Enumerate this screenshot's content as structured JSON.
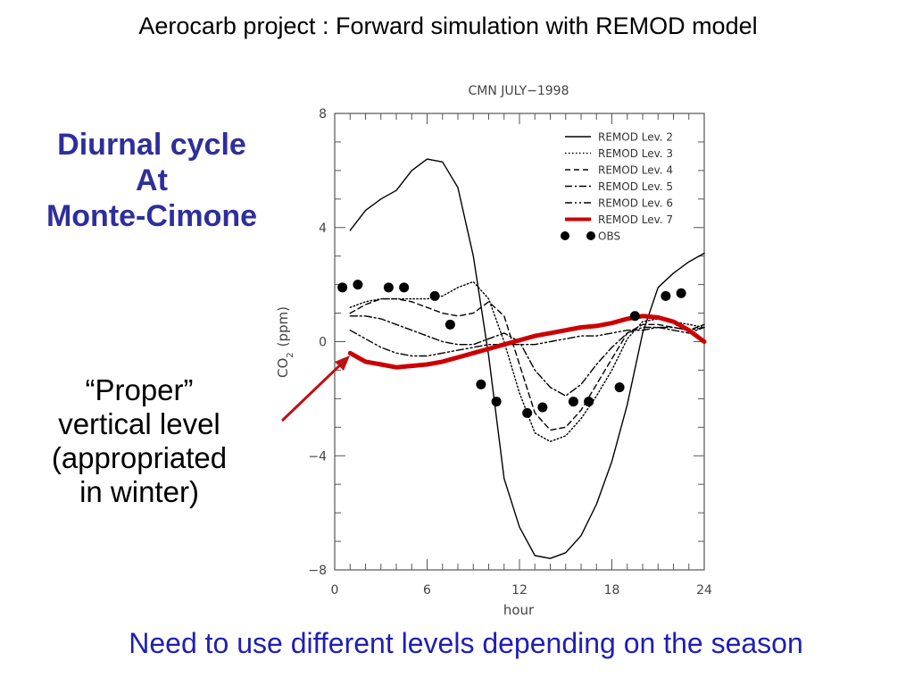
{
  "slide": {
    "title": "Aerocarb project : Forward simulation with REMOD model",
    "heading_lines": [
      "Diurnal cycle",
      "At",
      "Monte-Cimone"
    ],
    "callout_lines": [
      "“Proper”",
      "vertical level",
      "(appropriated",
      "in winter)"
    ],
    "footer": "Need to use different levels depending on the season",
    "heading_color": "#2e2e9c",
    "footer_color": "#1f1fb5",
    "arrow_color": "#c01010"
  },
  "chart_data": {
    "type": "line",
    "title": "CMN JULY−1998",
    "xlabel": "hour",
    "ylabel_main": "CO",
    "ylabel_sub": "2",
    "ylabel_unit": "(ppm)",
    "xlim": [
      0,
      24
    ],
    "ylim": [
      -8,
      8
    ],
    "x_ticks": [
      "0",
      "6",
      "12",
      "18",
      "24"
    ],
    "y_ticks": [
      "−8",
      "−4",
      "0",
      "4",
      "8"
    ],
    "legend_position": "top-right",
    "grid": false,
    "series": [
      {
        "name": "REMOD Lev. 2",
        "style": "solid",
        "color": "#000000",
        "x": [
          1,
          2,
          3,
          4,
          5,
          6,
          7,
          8,
          9,
          10,
          11,
          12,
          13,
          14,
          15,
          16,
          17,
          18,
          19,
          20,
          21,
          22,
          23,
          24
        ],
        "y": [
          3.9,
          4.6,
          5.0,
          5.3,
          6.0,
          6.4,
          6.3,
          5.4,
          3.0,
          -0.5,
          -4.8,
          -6.5,
          -7.5,
          -7.6,
          -7.4,
          -6.8,
          -5.7,
          -4.2,
          -2.2,
          0.3,
          1.9,
          2.4,
          2.8,
          3.1
        ]
      },
      {
        "name": "REMOD Lev. 3",
        "style": "dotted",
        "color": "#000000",
        "x": [
          1,
          2,
          3,
          4,
          5,
          6,
          7,
          8,
          9,
          10,
          11,
          12,
          13,
          14,
          15,
          16,
          17,
          18,
          19,
          20,
          21,
          22,
          23,
          24
        ],
        "y": [
          1.2,
          1.4,
          1.5,
          1.5,
          1.5,
          1.5,
          1.6,
          1.9,
          2.1,
          1.5,
          0.0,
          -1.8,
          -3.2,
          -3.5,
          -3.3,
          -2.7,
          -1.9,
          -1.0,
          0.1,
          0.7,
          0.8,
          0.7,
          0.6,
          0.5
        ]
      },
      {
        "name": "REMOD Lev. 4",
        "style": "dashed",
        "color": "#000000",
        "x": [
          1,
          2,
          3,
          4,
          5,
          6,
          7,
          8,
          9,
          10,
          11,
          12,
          13,
          14,
          15,
          16,
          17,
          18,
          19,
          20,
          21,
          22,
          23,
          24
        ],
        "y": [
          1.0,
          1.3,
          1.5,
          1.5,
          1.4,
          1.2,
          1.0,
          0.9,
          1.0,
          1.4,
          0.9,
          -0.8,
          -2.5,
          -3.1,
          -3.0,
          -2.4,
          -1.5,
          -0.6,
          0.3,
          0.6,
          0.6,
          0.5,
          0.4,
          0.6
        ]
      },
      {
        "name": "REMOD Lev. 5",
        "style": "dashdot",
        "color": "#000000",
        "x": [
          1,
          2,
          3,
          4,
          5,
          6,
          7,
          8,
          9,
          10,
          11,
          12,
          13,
          14,
          15,
          16,
          17,
          18,
          19,
          20,
          21,
          22,
          23,
          24
        ],
        "y": [
          0.9,
          0.9,
          0.8,
          0.6,
          0.4,
          0.2,
          0.0,
          -0.1,
          -0.1,
          0.1,
          0.3,
          0.0,
          -1.0,
          -1.6,
          -1.9,
          -1.5,
          -0.8,
          -0.2,
          0.3,
          0.5,
          0.5,
          0.4,
          0.3,
          0.5
        ]
      },
      {
        "name": "REMOD Lev. 6",
        "style": "dashdotdot",
        "color": "#000000",
        "x": [
          1,
          2,
          3,
          4,
          5,
          6,
          7,
          8,
          9,
          10,
          11,
          12,
          13,
          14,
          15,
          16,
          17,
          18,
          19,
          20,
          21,
          22,
          23,
          24
        ],
        "y": [
          0.4,
          0.1,
          -0.2,
          -0.4,
          -0.5,
          -0.5,
          -0.4,
          -0.3,
          -0.2,
          -0.1,
          -0.1,
          -0.1,
          -0.1,
          0.0,
          0.1,
          0.2,
          0.2,
          0.3,
          0.4,
          0.4,
          0.5,
          0.5,
          0.4,
          0.5
        ]
      },
      {
        "name": "REMOD Lev. 7",
        "style": "solid-thick",
        "color": "#cc0000",
        "x": [
          1,
          2,
          3,
          4,
          5,
          6,
          7,
          8,
          9,
          10,
          11,
          12,
          13,
          14,
          15,
          16,
          17,
          18,
          19,
          20,
          21,
          22,
          23,
          24
        ],
        "y": [
          -0.4,
          -0.7,
          -0.8,
          -0.9,
          -0.85,
          -0.8,
          -0.7,
          -0.55,
          -0.4,
          -0.25,
          -0.1,
          0.05,
          0.2,
          0.3,
          0.4,
          0.5,
          0.55,
          0.65,
          0.8,
          0.9,
          0.85,
          0.7,
          0.4,
          0.0
        ]
      },
      {
        "name": "OBS",
        "style": "markers",
        "color": "#000000",
        "x": [
          0.5,
          1.5,
          3.5,
          4.5,
          6.5,
          7.5,
          9.5,
          10.5,
          12.5,
          13.5,
          15.5,
          16.5,
          18.5,
          19.5,
          21.5,
          22.5
        ],
        "y": [
          1.9,
          2.0,
          1.9,
          1.9,
          1.6,
          0.6,
          -1.5,
          -2.1,
          -2.5,
          -2.3,
          -2.1,
          -2.1,
          -1.6,
          0.9,
          1.6,
          1.7
        ]
      }
    ]
  }
}
